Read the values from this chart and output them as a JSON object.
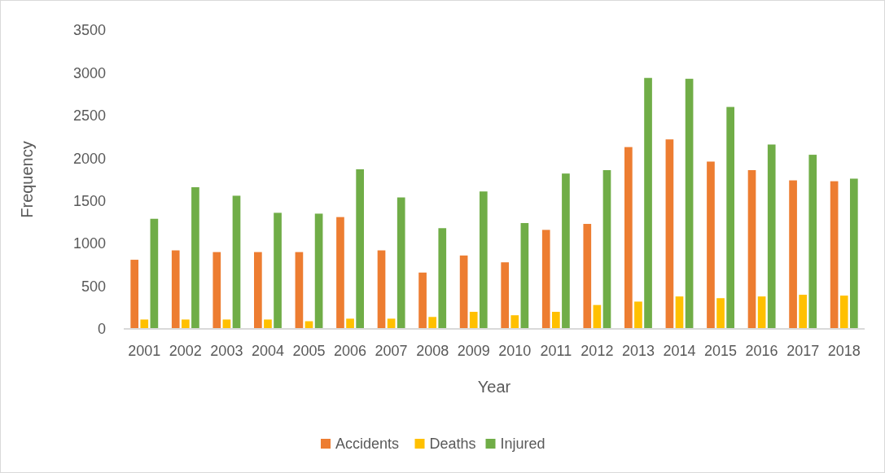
{
  "chart_data": {
    "type": "bar",
    "xlabel": "Year",
    "ylabel": "Frequency",
    "categories": [
      "2001",
      "2002",
      "2003",
      "2004",
      "2005",
      "2006",
      "2007",
      "2008",
      "2009",
      "2010",
      "2011",
      "2012",
      "2013",
      "2014",
      "2015",
      "2016",
      "2017",
      "2018"
    ],
    "series": [
      {
        "name": "Accidents",
        "color": "#ed7d31",
        "values": [
          810,
          920,
          900,
          900,
          900,
          1310,
          920,
          660,
          860,
          780,
          1160,
          1230,
          2130,
          2220,
          1960,
          1860,
          1740,
          1730
        ]
      },
      {
        "name": "Deaths",
        "color": "#ffc000",
        "values": [
          110,
          110,
          110,
          110,
          90,
          120,
          120,
          140,
          200,
          160,
          200,
          280,
          320,
          380,
          360,
          380,
          400,
          390
        ]
      },
      {
        "name": "Injured",
        "color": "#70ad47",
        "values": [
          1290,
          1660,
          1560,
          1360,
          1350,
          1870,
          1540,
          1180,
          1610,
          1240,
          1820,
          1860,
          2940,
          2930,
          2600,
          2160,
          2040,
          1760
        ]
      }
    ],
    "ylim": [
      0,
      3500
    ],
    "yticks": [
      0,
      500,
      1000,
      1500,
      2000,
      2500,
      3000,
      3500
    ],
    "grid": false,
    "legend": "bottom"
  }
}
